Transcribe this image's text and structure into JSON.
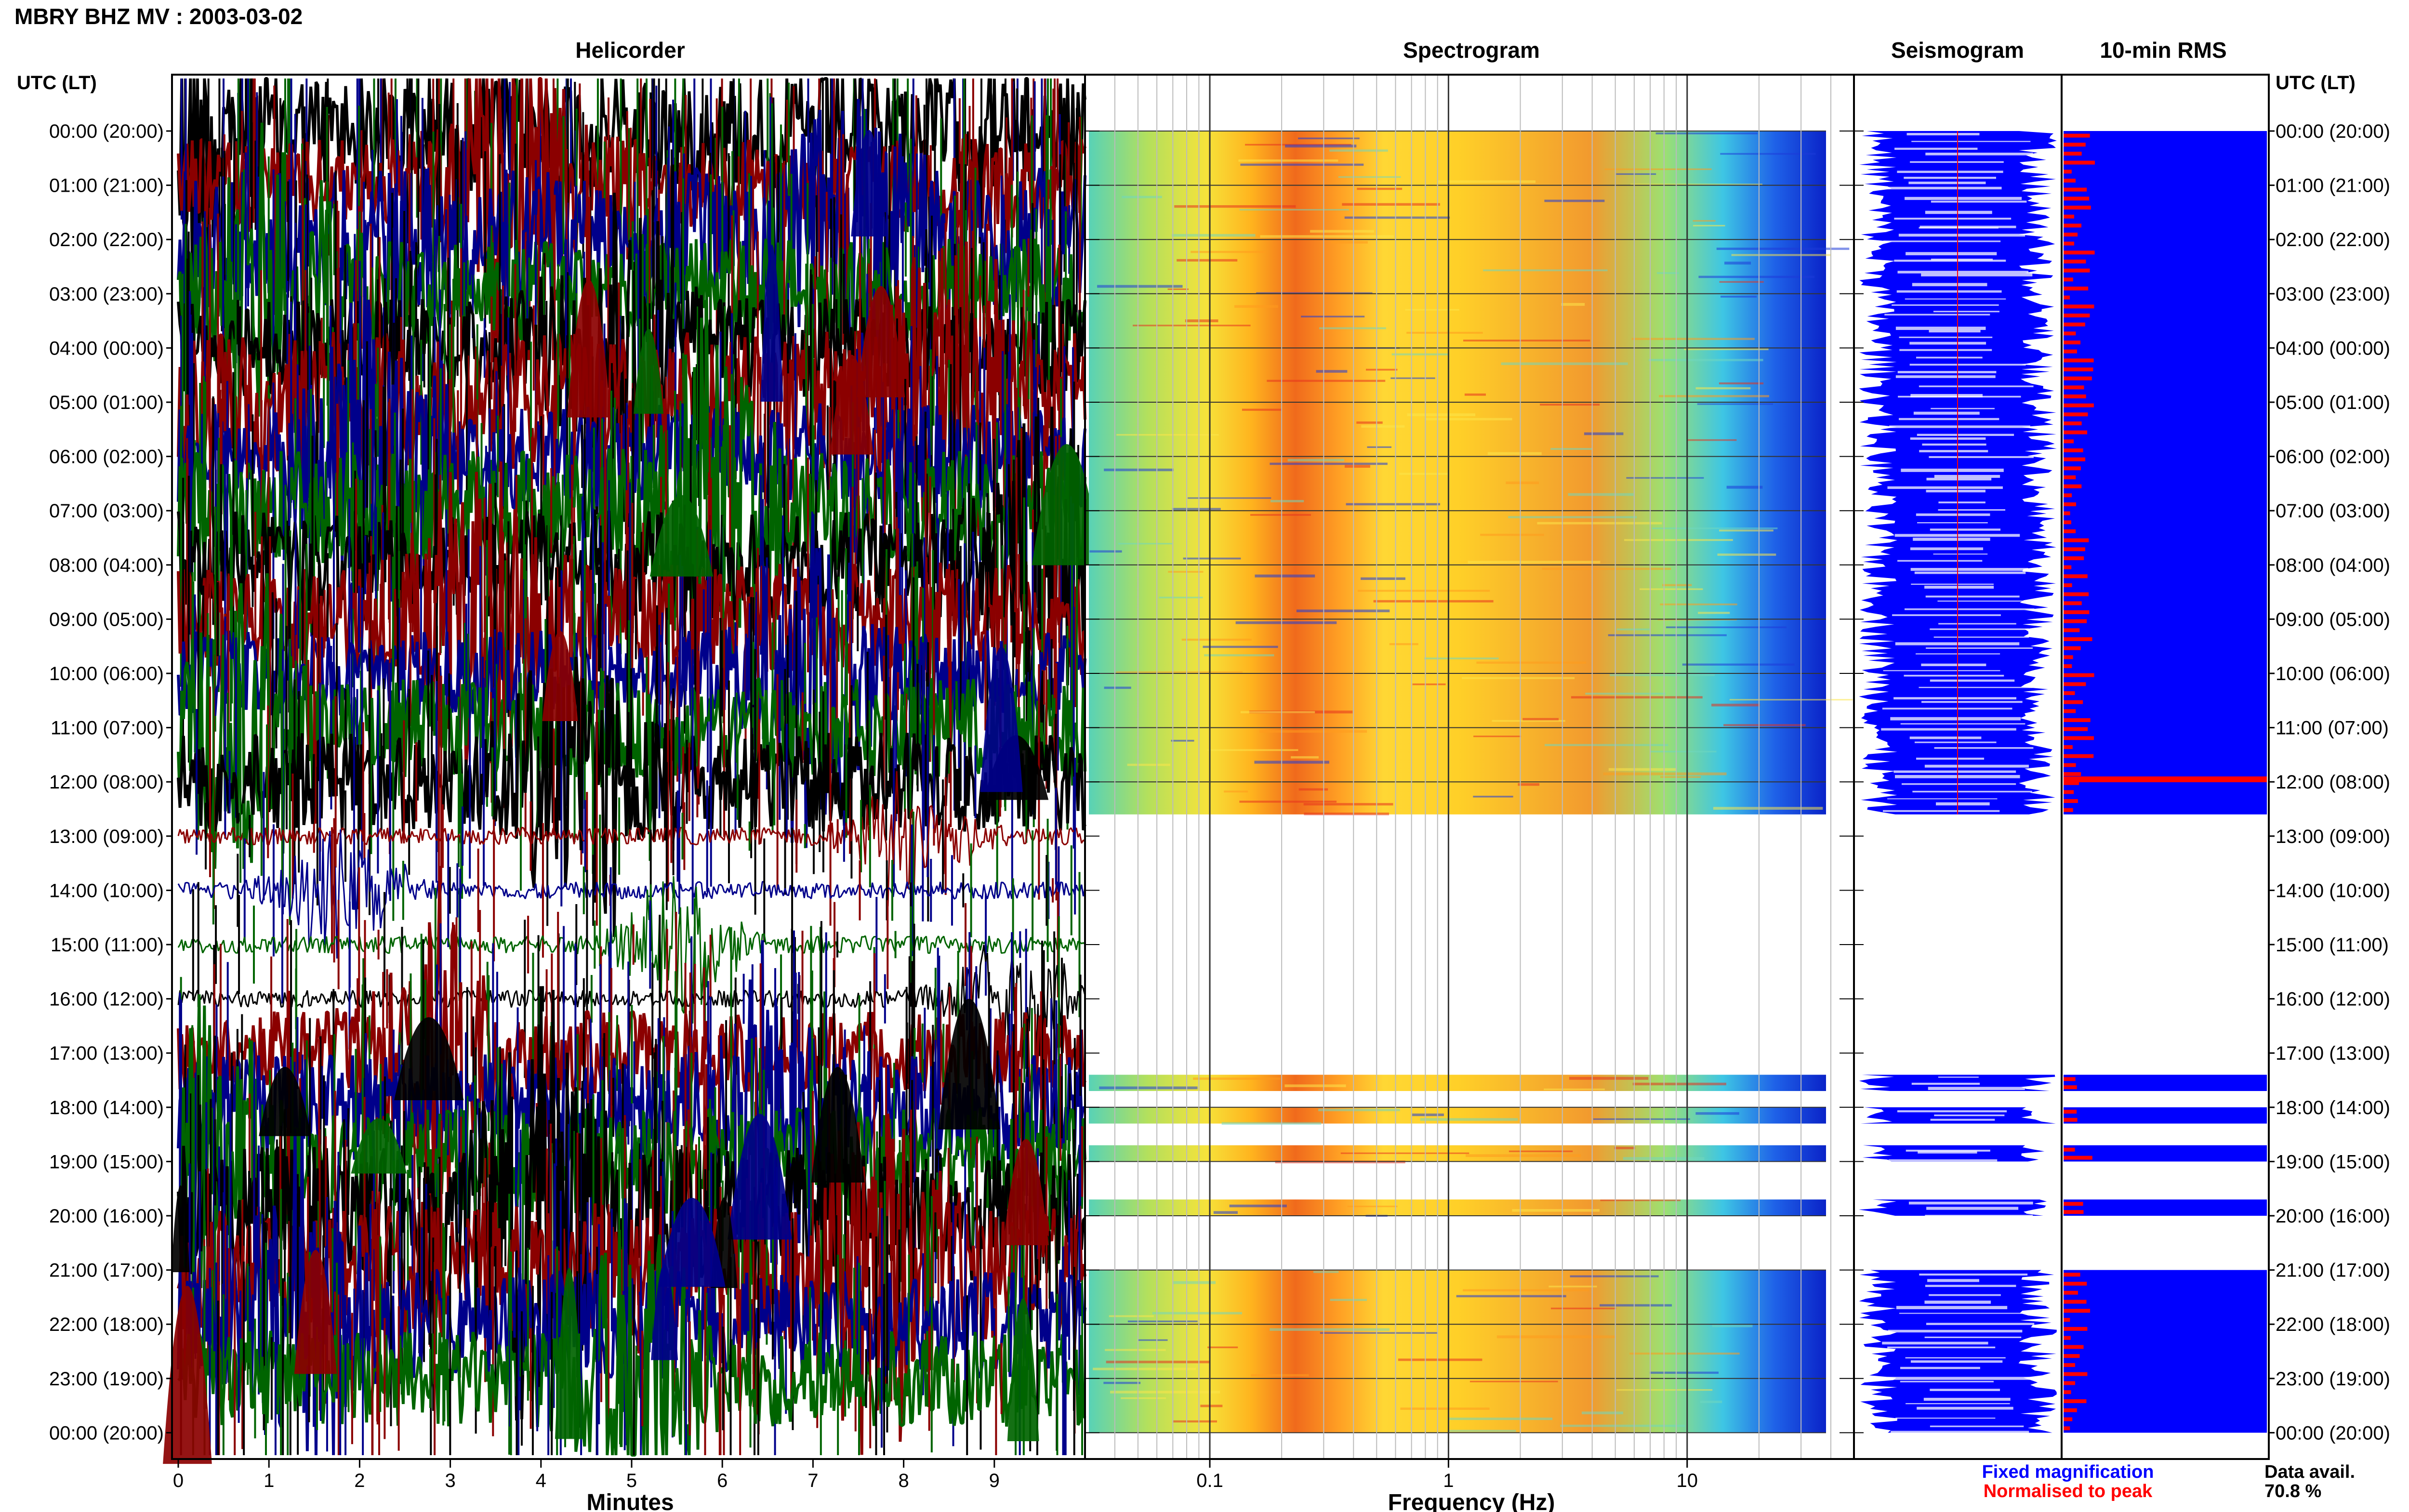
{
  "header": {
    "title": "MBRY BHZ MV : 2003-03-02"
  },
  "panels": {
    "helicorder": "Helicorder",
    "spectrogram": "Spectrogram",
    "seismogram": "Seismogram",
    "rms": "10-min RMS"
  },
  "left_axis": {
    "title": "UTC (LT)",
    "labels": [
      "00:00 (20:00)",
      "01:00 (21:00)",
      "02:00 (22:00)",
      "03:00 (23:00)",
      "04:00 (00:00)",
      "05:00 (01:00)",
      "06:00 (02:00)",
      "07:00 (03:00)",
      "08:00 (04:00)",
      "09:00 (05:00)",
      "10:00 (06:00)",
      "11:00 (07:00)",
      "12:00 (08:00)",
      "13:00 (09:00)",
      "14:00 (10:00)",
      "15:00 (11:00)",
      "16:00 (12:00)",
      "17:00 (13:00)",
      "18:00 (14:00)",
      "19:00 (15:00)",
      "20:00 (16:00)",
      "21:00 (17:00)",
      "22:00 (18:00)",
      "23:00 (19:00)",
      "00:00 (20:00)"
    ]
  },
  "right_axis": {
    "title": "UTC (LT)"
  },
  "legend": {
    "fixed": "Fixed magnification",
    "fixed_color": "#0000ff",
    "normalised": "Normalised to peak",
    "normalised_color": "#ff0000",
    "avail_label": "Data avail.",
    "avail_value": "70.8 %"
  },
  "chart_data": [
    {
      "type": "line",
      "title": "Helicorder",
      "xlabel": "Minutes",
      "xlim": [
        0,
        10
      ],
      "x_ticks": [
        "0",
        "1",
        "2",
        "3",
        "4",
        "5",
        "6",
        "7",
        "8",
        "9"
      ],
      "series_colors": [
        "#000000",
        "#8b0000",
        "#00008b",
        "#006400"
      ],
      "data_gap_utc_hours": [
        [
          12.6,
          16.8
        ]
      ],
      "note_rows_hours": 24
    },
    {
      "type": "heatmap",
      "title": "Spectrogram",
      "xlabel": "Frequency (Hz)",
      "xscale": "log",
      "xlim": [
        0.03,
        50
      ],
      "x_ticks": [
        "0.1",
        "1",
        "10"
      ],
      "data_segments_utc_hours": [
        [
          0,
          12.6
        ],
        [
          17.4,
          17.7
        ],
        [
          18.0,
          18.3
        ],
        [
          18.7,
          19.0
        ],
        [
          19.7,
          20.0
        ],
        [
          21.0,
          24.0
        ]
      ],
      "colormap": "jet"
    },
    {
      "type": "area",
      "title": "Seismogram",
      "color": "#0000ff",
      "data_segments_utc_hours": [
        [
          0,
          12.6
        ],
        [
          17.4,
          17.7
        ],
        [
          18.0,
          18.3
        ],
        [
          18.7,
          19.0
        ],
        [
          19.7,
          20.0
        ],
        [
          21.0,
          24.0
        ]
      ]
    },
    {
      "type": "bar",
      "title": "10-min RMS",
      "orientation": "horizontal",
      "fixed_color": "#0000ff",
      "normalised_color": "#ff0000",
      "data_segments_utc_hours": [
        [
          0,
          12.6
        ],
        [
          17.4,
          17.7
        ],
        [
          18.0,
          18.3
        ],
        [
          18.7,
          19.0
        ],
        [
          19.7,
          20.0
        ],
        [
          21.0,
          24.0
        ]
      ]
    }
  ]
}
